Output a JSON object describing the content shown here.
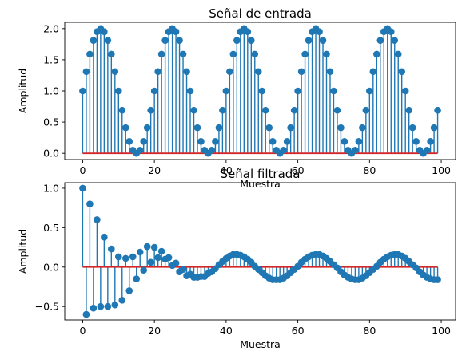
{
  "chart_data": [
    {
      "type": "stem",
      "title": "Señal de entrada",
      "xlabel": "Muestra",
      "ylabel": "Amplitud",
      "xlim": [
        -5,
        104
      ],
      "ylim": [
        -0.1,
        2.1
      ],
      "xticks": [
        0,
        20,
        40,
        60,
        80,
        100
      ],
      "yticks": [
        0.0,
        0.5,
        1.0,
        1.5,
        2.0
      ],
      "ytick_labels": [
        "0.0",
        "0.5",
        "1.0",
        "1.5",
        "2.0"
      ],
      "baseline": 0,
      "colors": {
        "stem": "#1f77b4",
        "marker": "#1f77b4",
        "baseline": "#d62728"
      },
      "series": [
        {
          "x": [
            0,
            1,
            2,
            3,
            4,
            5,
            6,
            7,
            8,
            9,
            10,
            11,
            12,
            13,
            14,
            15,
            16,
            17,
            18,
            19,
            20,
            21,
            22,
            23,
            24,
            25,
            26,
            27,
            28,
            29,
            30,
            31,
            32,
            33,
            34,
            35,
            36,
            37,
            38,
            39,
            40,
            41,
            42,
            43,
            44,
            45,
            46,
            47,
            48,
            49,
            50,
            51,
            52,
            53,
            54,
            55,
            56,
            57,
            58,
            59,
            60,
            61,
            62,
            63,
            64,
            65,
            66,
            67,
            68,
            69,
            70,
            71,
            72,
            73,
            74,
            75,
            76,
            77,
            78,
            79,
            80,
            81,
            82,
            83,
            84,
            85,
            86,
            87,
            88,
            89,
            90,
            91,
            92,
            93,
            94,
            95,
            96,
            97,
            98,
            99
          ],
          "values": [
            1.0,
            1.31,
            1.59,
            1.81,
            1.95,
            2.0,
            1.95,
            1.81,
            1.59,
            1.31,
            1.0,
            0.69,
            0.41,
            0.19,
            0.05,
            0.0,
            0.05,
            0.19,
            0.41,
            0.69,
            1.0,
            1.31,
            1.59,
            1.81,
            1.95,
            2.0,
            1.95,
            1.81,
            1.59,
            1.31,
            1.0,
            0.69,
            0.41,
            0.19,
            0.05,
            0.0,
            0.05,
            0.19,
            0.41,
            0.69,
            1.0,
            1.31,
            1.59,
            1.81,
            1.95,
            2.0,
            1.95,
            1.81,
            1.59,
            1.31,
            1.0,
            0.69,
            0.41,
            0.19,
            0.05,
            0.0,
            0.05,
            0.19,
            0.41,
            0.69,
            1.0,
            1.31,
            1.59,
            1.81,
            1.95,
            2.0,
            1.95,
            1.81,
            1.59,
            1.31,
            1.0,
            0.69,
            0.41,
            0.19,
            0.05,
            0.0,
            0.05,
            0.19,
            0.41,
            0.69,
            1.0,
            1.31,
            1.59,
            1.81,
            1.95,
            2.0,
            1.95,
            1.81,
            1.59,
            1.31,
            1.0,
            0.69,
            0.41,
            0.19,
            0.05,
            0.0,
            0.05,
            0.19,
            0.41,
            0.69
          ]
        }
      ]
    },
    {
      "type": "stem",
      "title": "Señal filtrada",
      "xlabel": "Muestra",
      "ylabel": "Amplitud",
      "xlim": [
        -5,
        104
      ],
      "ylim": [
        -0.67,
        1.07
      ],
      "xticks": [
        0,
        20,
        40,
        60,
        80,
        100
      ],
      "yticks": [
        -0.5,
        0.0,
        0.5,
        1.0
      ],
      "ytick_labels": [
        "−0.5",
        "0.0",
        "0.5",
        "1.0"
      ],
      "baseline": 0,
      "colors": {
        "stem": "#1f77b4",
        "marker": "#1f77b4",
        "baseline": "#d62728"
      },
      "series": [
        {
          "x": [
            0,
            1,
            2,
            3,
            4,
            5,
            6,
            7,
            8,
            9,
            10,
            11,
            12,
            13,
            14,
            15,
            16,
            17,
            18,
            19,
            20,
            21,
            22,
            23,
            24,
            25,
            26,
            27,
            28,
            29,
            30,
            31,
            32,
            33,
            34,
            35,
            36,
            37,
            38,
            39,
            40,
            41,
            42,
            43,
            44,
            45,
            46,
            47,
            48,
            49,
            50,
            51,
            52,
            53,
            54,
            55,
            56,
            57,
            58,
            59,
            60,
            61,
            62,
            63,
            64,
            65,
            66,
            67,
            68,
            69,
            70,
            71,
            72,
            73,
            74,
            75,
            76,
            77,
            78,
            79,
            80,
            81,
            82,
            83,
            84,
            85,
            86,
            87,
            88,
            89,
            90,
            91,
            92,
            93,
            94,
            95,
            96,
            97,
            98,
            99
          ],
          "values": [
            1.0,
            -0.6,
            0.8,
            -0.52,
            0.6,
            -0.5,
            0.38,
            -0.5,
            0.23,
            -0.48,
            0.13,
            -0.42,
            0.11,
            -0.3,
            0.13,
            -0.15,
            0.19,
            -0.04,
            0.26,
            0.06,
            0.25,
            0.12,
            0.2,
            0.1,
            0.12,
            0.02,
            0.05,
            -0.06,
            -0.03,
            -0.11,
            -0.09,
            -0.13,
            -0.13,
            -0.12,
            -0.12,
            -0.08,
            -0.06,
            -0.02,
            0.03,
            0.07,
            0.11,
            0.14,
            0.16,
            0.16,
            0.15,
            0.13,
            0.1,
            0.06,
            0.01,
            -0.03,
            -0.07,
            -0.11,
            -0.14,
            -0.16,
            -0.16,
            -0.16,
            -0.14,
            -0.11,
            -0.07,
            -0.03,
            0.01,
            0.06,
            0.1,
            0.13,
            0.15,
            0.16,
            0.16,
            0.14,
            0.11,
            0.07,
            0.03,
            -0.01,
            -0.06,
            -0.1,
            -0.13,
            -0.15,
            -0.16,
            -0.16,
            -0.14,
            -0.11,
            -0.07,
            -0.03,
            0.01,
            0.06,
            0.1,
            0.13,
            0.15,
            0.16,
            0.16,
            0.14,
            0.11,
            0.07,
            0.03,
            -0.01,
            -0.06,
            -0.1,
            -0.13,
            -0.15,
            -0.16,
            -0.16
          ]
        }
      ]
    }
  ]
}
